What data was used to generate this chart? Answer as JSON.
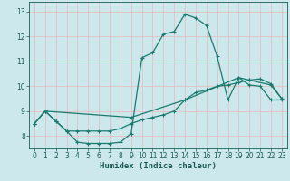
{
  "xlabel": "Humidex (Indice chaleur)",
  "bg_color": "#cce8ec",
  "grid_color": "#b0d4d8",
  "line_color": "#1a7a6e",
  "xlim": [
    -0.5,
    23.5
  ],
  "ylim": [
    7.5,
    13.4
  ],
  "xticks": [
    0,
    1,
    2,
    3,
    4,
    5,
    6,
    7,
    8,
    9,
    10,
    11,
    12,
    13,
    14,
    15,
    16,
    17,
    18,
    19,
    20,
    21,
    22,
    23
  ],
  "yticks": [
    8,
    9,
    10,
    11,
    12,
    13
  ],
  "line1_x": [
    0,
    1,
    2,
    3,
    4,
    5,
    6,
    7,
    8,
    9,
    10,
    11,
    12,
    13,
    14,
    15,
    16,
    17,
    18,
    19,
    20,
    21,
    22,
    23
  ],
  "line1_y": [
    8.5,
    9.0,
    8.6,
    8.2,
    7.75,
    7.7,
    7.7,
    7.7,
    7.75,
    8.1,
    11.15,
    11.35,
    12.1,
    12.2,
    12.9,
    12.75,
    12.45,
    11.2,
    9.45,
    10.35,
    10.05,
    10.0,
    9.45,
    9.45
  ],
  "line2_x": [
    0,
    1,
    2,
    3,
    4,
    5,
    6,
    7,
    8,
    9,
    10,
    11,
    12,
    13,
    14,
    15,
    16,
    17,
    18,
    19,
    20,
    21,
    22,
    23
  ],
  "line2_y": [
    8.5,
    9.0,
    8.6,
    8.2,
    8.2,
    8.2,
    8.2,
    8.2,
    8.3,
    8.5,
    8.65,
    8.75,
    8.85,
    9.0,
    9.45,
    9.75,
    9.85,
    10.0,
    10.05,
    10.15,
    10.25,
    10.3,
    10.1,
    9.5
  ],
  "line3_x": [
    0,
    1,
    9,
    14,
    19,
    20,
    22,
    23
  ],
  "line3_y": [
    8.5,
    9.0,
    8.75,
    9.45,
    10.35,
    10.25,
    10.05,
    9.5
  ]
}
